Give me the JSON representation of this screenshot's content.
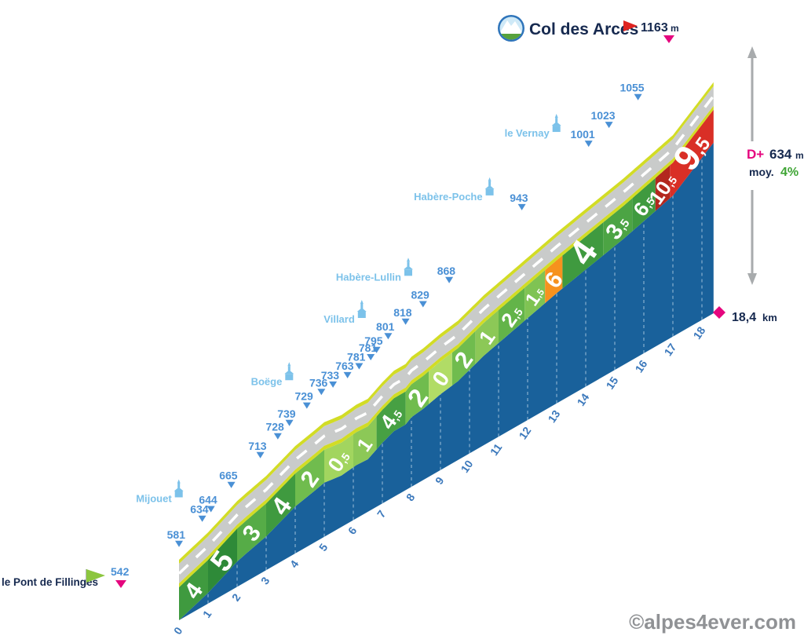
{
  "title": {
    "name": "Col des Arces",
    "elevation": "1163",
    "unit": "m"
  },
  "start": {
    "name": "le Pont de Fillinges",
    "elevation": "542"
  },
  "stats": {
    "dplus_label": "D+",
    "dplus_value": "634",
    "dplus_unit": "m",
    "avg_label": "moy.",
    "avg_value": "4%",
    "distance_value": "18,4",
    "distance_unit": "km"
  },
  "watermark": "©alpes4ever.com",
  "colors": {
    "body": "#19619b",
    "road": "#c9cbca",
    "road_dash": "#ffffff",
    "edge": "#d2dc25",
    "label_blue": "#4a90d5",
    "place_blue": "#7cc2ea",
    "tick_blue": "#3c79bc",
    "navy": "#16294f",
    "magenta": "#e5067e",
    "green": "#3fa535",
    "gray_arrow": "#a8abad",
    "watermark_gray": "#909295",
    "flag_green": "#8cc63f",
    "flag_red": "#df2420"
  },
  "chart_data": {
    "type": "area",
    "title": "Col des Arces climb profile",
    "x_unit": "km",
    "y_unit": "m",
    "x_range": [
      0,
      18.4
    ],
    "y_range": [
      542,
      1163
    ],
    "total_distance_km": 18.4,
    "elevation_gain_m": 634,
    "avg_gradient_pct": 4,
    "start_elevation_m": 542,
    "summit_elevation_m": 1163,
    "grid": "km dashed verticals",
    "legend": "none",
    "profile_points": [
      [
        0,
        542
      ],
      [
        1,
        581
      ],
      [
        2,
        634
      ],
      [
        2.3,
        644
      ],
      [
        3,
        665
      ],
      [
        4,
        713
      ],
      [
        4.6,
        728
      ],
      [
        5,
        739
      ],
      [
        5.6,
        729
      ],
      [
        6.1,
        736
      ],
      [
        6.5,
        733
      ],
      [
        7,
        763
      ],
      [
        7.4,
        781
      ],
      [
        7.8,
        781
      ],
      [
        8,
        795
      ],
      [
        8.4,
        801
      ],
      [
        9,
        818
      ],
      [
        9.6,
        829
      ],
      [
        10.5,
        868
      ],
      [
        13,
        943
      ],
      [
        15.3,
        1001
      ],
      [
        16,
        1023
      ],
      [
        17,
        1055
      ],
      [
        18.4,
        1163
      ]
    ],
    "elevation_labels": [
      {
        "d": 1,
        "t": "581"
      },
      {
        "d": 2,
        "t": "634"
      },
      {
        "d": 2.3,
        "t": "644"
      },
      {
        "d": 3,
        "t": "665"
      },
      {
        "d": 4,
        "t": "713"
      },
      {
        "d": 4.6,
        "t": "728"
      },
      {
        "d": 5,
        "t": "739"
      },
      {
        "d": 5.6,
        "t": "729"
      },
      {
        "d": 6.1,
        "t": "736"
      },
      {
        "d": 6.5,
        "t": "733"
      },
      {
        "d": 7,
        "t": "763"
      },
      {
        "d": 7.4,
        "t": "781"
      },
      {
        "d": 7.8,
        "t": "781"
      },
      {
        "d": 8,
        "t": "795"
      },
      {
        "d": 8.4,
        "t": "801"
      },
      {
        "d": 9,
        "t": "818"
      },
      {
        "d": 9.6,
        "t": "829"
      },
      {
        "d": 10.5,
        "t": "868"
      },
      {
        "d": 13,
        "t": "943"
      },
      {
        "d": 15.3,
        "t": "1001"
      },
      {
        "d": 16,
        "t": "1023"
      },
      {
        "d": 17,
        "t": "1055"
      }
    ],
    "places": [
      {
        "name": "Mijouet",
        "d": 2.3
      },
      {
        "name": "Boëge",
        "d": 6.1
      },
      {
        "name": "Villard",
        "d": 8.6
      },
      {
        "name": "Habère-Lullin",
        "d": 10.2
      },
      {
        "name": "Habère-Poche",
        "d": 13
      },
      {
        "name": "le Vernay",
        "d": 15.3
      }
    ],
    "gradient_segments": [
      {
        "from": 0,
        "to": 1,
        "label": "4",
        "color": "#3f9a3f",
        "size": 30
      },
      {
        "from": 1,
        "to": 2,
        "label": "5",
        "color": "#2e8a38",
        "size": 38
      },
      {
        "from": 2,
        "to": 3,
        "label": "3",
        "color": "#56ac47",
        "size": 30
      },
      {
        "from": 3,
        "to": 4,
        "label": "4",
        "color": "#3f9a3f",
        "size": 33
      },
      {
        "from": 4,
        "to": 5,
        "label": "2",
        "color": "#70bc4e",
        "size": 30
      },
      {
        "from": 5,
        "to": 6,
        "label": "0,5",
        "color": "#a2d55f",
        "size": 27
      },
      {
        "from": 6,
        "to": 6.8,
        "label": "1",
        "color": "#8cc857",
        "size": 25
      },
      {
        "from": 6.8,
        "to": 7.8,
        "label": "4,5",
        "color": "#47a043",
        "size": 27
      },
      {
        "from": 7.8,
        "to": 8.6,
        "label": "2",
        "color": "#70bc4e",
        "size": 33
      },
      {
        "from": 8.6,
        "to": 9.4,
        "label": "0",
        "color": "#b1dc66",
        "size": 28
      },
      {
        "from": 9.4,
        "to": 10.2,
        "label": "2",
        "color": "#70bc4e",
        "size": 30
      },
      {
        "from": 10.2,
        "to": 11,
        "label": "1",
        "color": "#8cc857",
        "size": 26
      },
      {
        "from": 11,
        "to": 11.9,
        "label": "2,5",
        "color": "#63b449",
        "size": 26
      },
      {
        "from": 11.9,
        "to": 12.6,
        "label": "1,5",
        "color": "#7fc353",
        "size": 24
      },
      {
        "from": 12.6,
        "to": 13.2,
        "label": "6",
        "color": "#f6921e",
        "size": 30
      },
      {
        "from": 13.2,
        "to": 14.6,
        "label": "4",
        "color": "#3f9a3f",
        "size": 46
      },
      {
        "from": 14.6,
        "to": 15.6,
        "label": "3,5",
        "color": "#4ca444",
        "size": 29
      },
      {
        "from": 15.6,
        "to": 16.4,
        "label": "6,5",
        "color": "#3f9a3f",
        "size": 26
      },
      {
        "from": 16.4,
        "to": 16.9,
        "label": "10,5",
        "color": "#b3271e",
        "size": 26
      },
      {
        "from": 16.9,
        "to": 18.4,
        "label": "9,5",
        "color": "#d92f26",
        "size": 46
      }
    ],
    "km_ticks": [
      "0",
      "1",
      "2",
      "3",
      "4",
      "5",
      "6",
      "7",
      "8",
      "9",
      "10",
      "11",
      "12",
      "13",
      "14",
      "15",
      "16",
      "17",
      "18"
    ]
  }
}
